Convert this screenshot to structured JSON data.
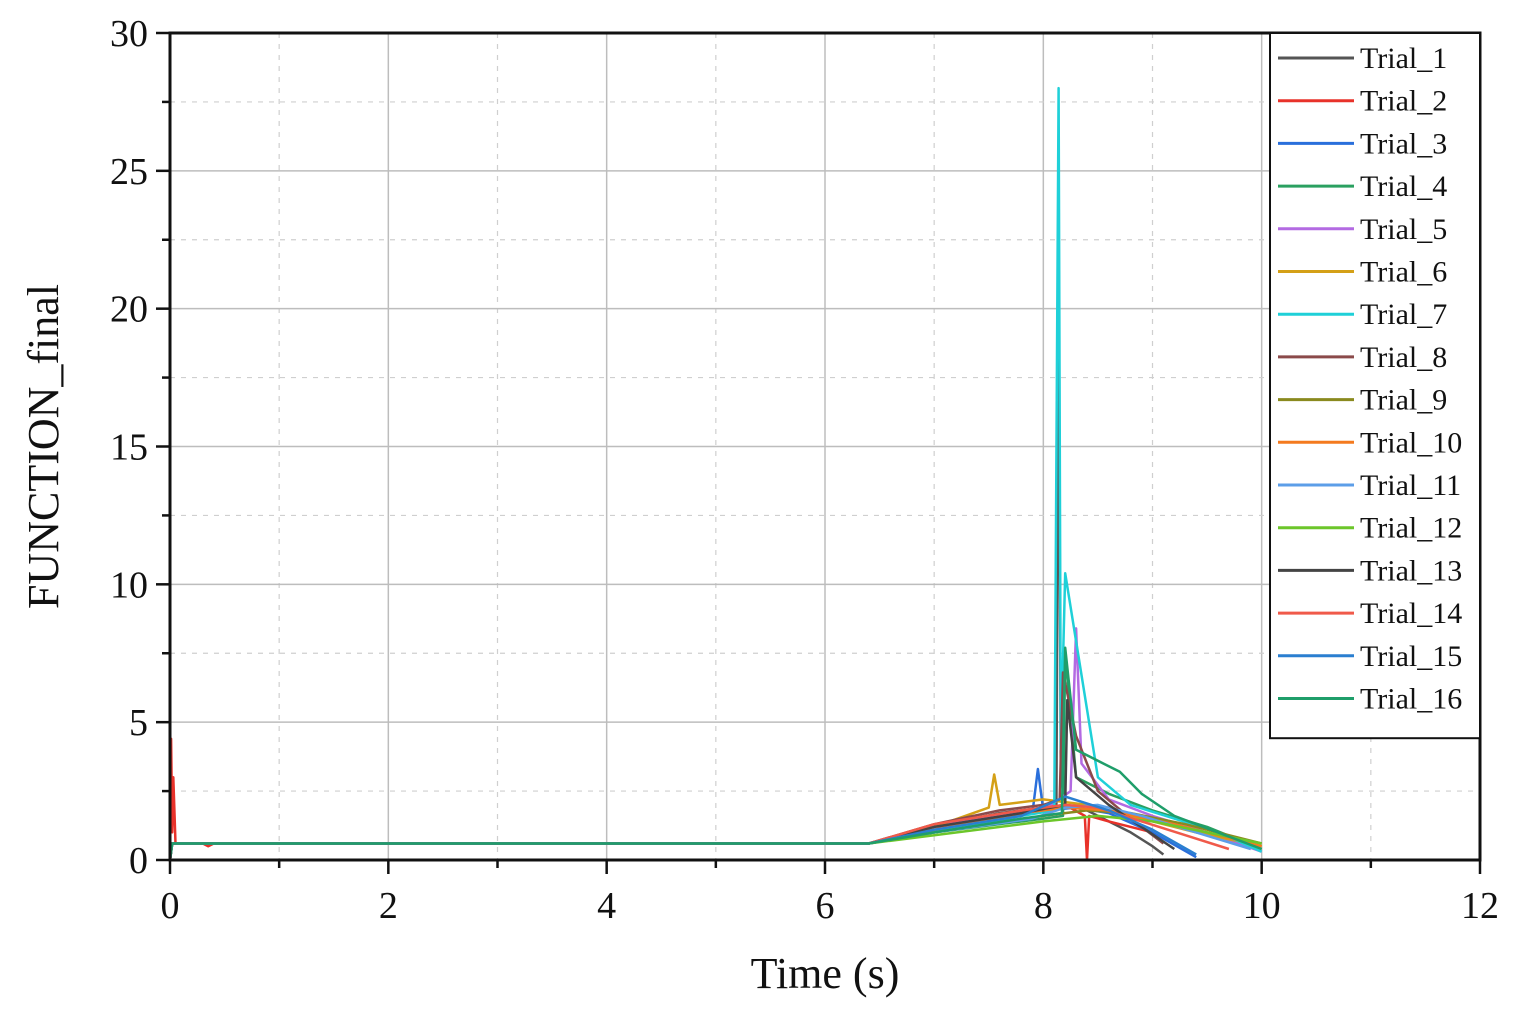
{
  "chart_data": {
    "type": "line",
    "title": "",
    "xlabel": "Time (s)",
    "ylabel": "FUNCTION_final",
    "xlim": [
      0,
      12
    ],
    "ylim": [
      0,
      30
    ],
    "xticks": [
      0,
      2,
      4,
      6,
      8,
      10,
      12
    ],
    "yticks": [
      0,
      5,
      10,
      15,
      20,
      25,
      30
    ],
    "grid": true,
    "legend_position": "top-right",
    "series": [
      {
        "name": "Trial_1",
        "color": "#555555",
        "x": [
          0,
          0.02,
          0.05,
          6.4,
          7.0,
          7.6,
          8.0,
          8.12,
          8.14,
          8.16,
          8.2,
          8.4,
          8.6,
          8.8,
          9.0,
          9.1
        ],
        "y": [
          0,
          0.6,
          0.6,
          0.6,
          1.2,
          1.7,
          1.9,
          2.0,
          20.7,
          3.0,
          2.0,
          1.8,
          1.4,
          1.0,
          0.5,
          0.2
        ]
      },
      {
        "name": "Trial_2",
        "color": "#e8322a",
        "x": [
          0,
          0.01,
          0.02,
          0.03,
          0.05,
          0.3,
          0.35,
          0.4,
          6.4,
          7.0,
          7.5,
          8.0,
          8.2,
          8.38,
          8.4,
          8.42,
          8.6,
          9.0
        ],
        "y": [
          0,
          4.4,
          1.0,
          3.0,
          0.6,
          0.6,
          0.5,
          0.6,
          0.6,
          1.1,
          1.6,
          1.9,
          2.0,
          1.6,
          0.0,
          1.6,
          1.4,
          1.0
        ]
      },
      {
        "name": "Trial_3",
        "color": "#2a6fdb",
        "x": [
          0,
          0.02,
          0.05,
          6.4,
          7.0,
          7.9,
          7.95,
          8.0,
          8.3,
          8.6,
          9.0,
          9.4
        ],
        "y": [
          0,
          0.6,
          0.6,
          0.6,
          1.0,
          1.7,
          3.3,
          1.8,
          1.9,
          1.7,
          1.0,
          0.1
        ]
      },
      {
        "name": "Trial_4",
        "color": "#2aa060",
        "x": [
          0,
          0.02,
          0.05,
          6.4,
          7.0,
          8.0,
          8.18,
          8.2,
          8.3,
          8.6,
          9.0,
          9.5,
          10.0
        ],
        "y": [
          0,
          0.6,
          0.6,
          0.6,
          1.0,
          1.5,
          1.6,
          7.5,
          3.0,
          2.4,
          1.8,
          1.2,
          0.4
        ]
      },
      {
        "name": "Trial_5",
        "color": "#b36ae2",
        "x": [
          0,
          0.02,
          0.05,
          6.4,
          7.2,
          8.0,
          8.25,
          8.3,
          8.35,
          8.6,
          9.0,
          9.5,
          10.0
        ],
        "y": [
          0,
          0.6,
          0.6,
          0.6,
          1.4,
          1.8,
          2.5,
          8.4,
          3.5,
          2.2,
          1.6,
          1.0,
          0.3
        ]
      },
      {
        "name": "Trial_6",
        "color": "#d4a017",
        "x": [
          0,
          0.02,
          0.05,
          6.4,
          7.0,
          7.5,
          7.55,
          7.6,
          8.0,
          8.4,
          8.8,
          9.4,
          10.0
        ],
        "y": [
          0,
          0.6,
          0.6,
          0.6,
          1.2,
          1.9,
          3.1,
          2.0,
          2.2,
          2.0,
          1.6,
          1.0,
          0.5
        ]
      },
      {
        "name": "Trial_7",
        "color": "#1fd0d8",
        "x": [
          0,
          0.02,
          0.05,
          6.4,
          7.0,
          7.8,
          8.1,
          8.14,
          8.16,
          8.2,
          8.5,
          8.8,
          9.2,
          9.6,
          10.0
        ],
        "y": [
          0,
          0.6,
          0.6,
          0.6,
          1.0,
          1.6,
          1.8,
          28.0,
          4.0,
          10.4,
          3.0,
          2.0,
          1.5,
          1.0,
          0.3
        ]
      },
      {
        "name": "Trial_8",
        "color": "#8b4a4a",
        "x": [
          0,
          0.02,
          0.05,
          6.4,
          7.0,
          7.6,
          8.0,
          8.15,
          8.18,
          8.3,
          8.5,
          8.8,
          9.1
        ],
        "y": [
          0,
          0.6,
          0.6,
          0.6,
          1.3,
          1.8,
          2.0,
          2.2,
          6.8,
          4.5,
          2.5,
          1.5,
          0.6
        ]
      },
      {
        "name": "Trial_9",
        "color": "#8a8a1e",
        "x": [
          0,
          0.02,
          0.05,
          6.4,
          7.0,
          8.0,
          8.4,
          8.8,
          9.3,
          9.8,
          10.0
        ],
        "y": [
          0,
          0.6,
          0.6,
          0.6,
          1.0,
          1.6,
          1.8,
          1.7,
          1.3,
          0.8,
          0.6
        ]
      },
      {
        "name": "Trial_10",
        "color": "#f47a1f",
        "x": [
          0,
          0.02,
          0.05,
          6.4,
          7.0,
          7.8,
          8.2,
          8.6,
          9.2,
          9.6,
          10.0
        ],
        "y": [
          0,
          0.6,
          0.6,
          0.6,
          1.1,
          1.7,
          1.9,
          1.8,
          1.3,
          0.9,
          0.5
        ]
      },
      {
        "name": "Trial_11",
        "color": "#5c9ee8",
        "x": [
          0,
          0.02,
          0.05,
          6.4,
          7.0,
          7.9,
          8.2,
          8.5,
          8.9,
          9.4,
          9.9
        ],
        "y": [
          0,
          0.6,
          0.6,
          0.6,
          1.0,
          1.5,
          1.9,
          2.0,
          1.6,
          1.0,
          0.4
        ]
      },
      {
        "name": "Trial_12",
        "color": "#6cc62a",
        "x": [
          0,
          0.02,
          0.05,
          6.4,
          7.0,
          8.0,
          8.5,
          9.0,
          9.5,
          10.0
        ],
        "y": [
          0,
          0.6,
          0.6,
          0.6,
          0.9,
          1.4,
          1.6,
          1.4,
          1.0,
          0.6
        ]
      },
      {
        "name": "Trial_13",
        "color": "#444444",
        "x": [
          0,
          0.02,
          0.05,
          6.4,
          7.0,
          7.8,
          8.2,
          8.22,
          8.3,
          8.6,
          8.9,
          9.2
        ],
        "y": [
          0,
          0.6,
          0.6,
          0.6,
          1.2,
          1.7,
          2.0,
          5.8,
          3.0,
          2.0,
          1.2,
          0.4
        ]
      },
      {
        "name": "Trial_14",
        "color": "#f05a4a",
        "x": [
          0,
          0.02,
          0.05,
          6.4,
          7.0,
          7.8,
          8.2,
          8.5,
          8.9,
          9.3,
          9.7
        ],
        "y": [
          0,
          0.6,
          0.6,
          0.6,
          1.3,
          1.8,
          2.0,
          1.9,
          1.4,
          0.9,
          0.4
        ]
      },
      {
        "name": "Trial_15",
        "color": "#2a7fd0",
        "x": [
          0,
          0.02,
          0.05,
          6.4,
          7.0,
          7.8,
          8.2,
          8.6,
          9.0,
          9.4
        ],
        "y": [
          0,
          0.6,
          0.6,
          0.6,
          1.1,
          1.6,
          2.3,
          1.8,
          1.1,
          0.2
        ]
      },
      {
        "name": "Trial_16",
        "color": "#1f9e6a",
        "x": [
          0,
          0.02,
          0.05,
          6.4,
          7.0,
          7.8,
          8.17,
          8.2,
          8.3,
          8.5,
          8.7,
          8.9,
          9.2,
          9.6,
          10.0
        ],
        "y": [
          0,
          0.6,
          0.6,
          0.6,
          1.0,
          1.5,
          1.7,
          7.7,
          4.0,
          3.6,
          3.2,
          2.4,
          1.6,
          1.0,
          0.4
        ]
      }
    ]
  }
}
